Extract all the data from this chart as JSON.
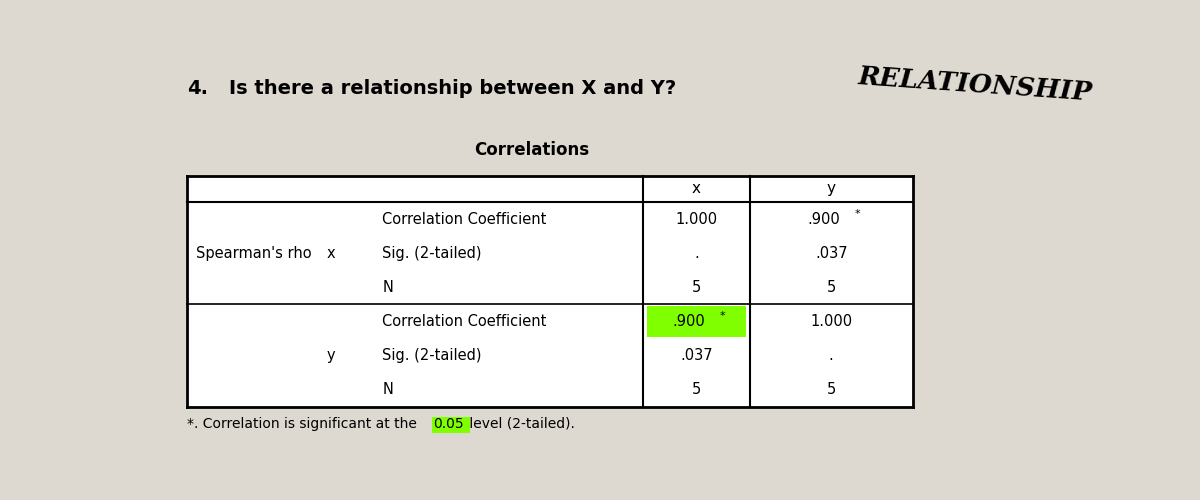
{
  "title_number": "4.",
  "title_text": "Is there a relationship between X and Y?",
  "handwritten_text": "RELATIONSHIP",
  "table_title": "Correlations",
  "background_color": "#ddd9d0",
  "footnote_prefix": "*. Correlation is significant at the ",
  "footnote_highlight": "0.05",
  "footnote_suffix": " level (2-tailed).",
  "col0_text": "Spearman's rho",
  "col1_x": "x",
  "col1_y": "y",
  "header_x": "x",
  "header_y": "y",
  "rows_x": [
    [
      "Correlation Coefficient",
      "1.000",
      ".900",
      true
    ],
    [
      "Sig. (2-tailed)",
      ".",
      ".037",
      false
    ],
    [
      "N",
      "5",
      "5",
      false
    ]
  ],
  "rows_y": [
    [
      "Correlation Coefficient",
      ".900",
      "1.000",
      true
    ],
    [
      "Sig. (2-tailed)",
      ".037",
      ".",
      false
    ],
    [
      "N",
      "5",
      "5",
      false
    ]
  ],
  "highlight_x_900": false,
  "highlight_y_900": true,
  "green_color": "#7fff00"
}
